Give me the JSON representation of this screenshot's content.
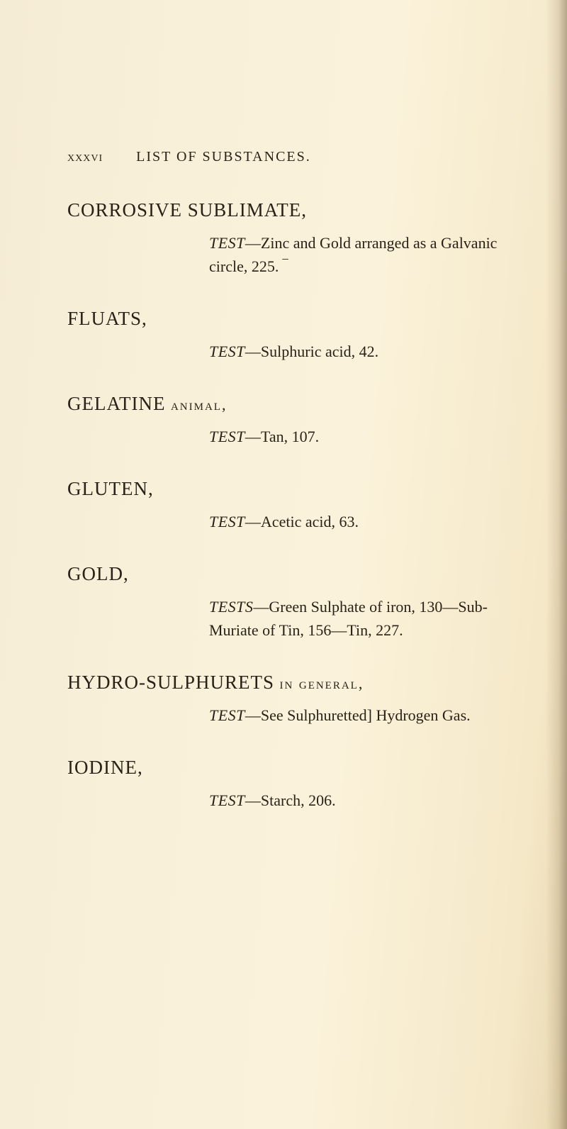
{
  "runningHead": {
    "pageNum": "xxxvi",
    "title": "LIST OF SUBSTANCES."
  },
  "entries": [
    {
      "head": "CORROSIVE SUBLIMATE,",
      "sub": "",
      "test": "TEST—Zinc and Gold arranged as a Galvanic circle, 225. ‾"
    },
    {
      "head": "FLUATS,",
      "sub": "",
      "test": "TEST—Sulphuric acid, 42."
    },
    {
      "head": "GELATINE",
      "sub": "animal,",
      "test": "TEST—Tan, 107."
    },
    {
      "head": "GLUTEN,",
      "sub": "",
      "test": "TEST—Acetic acid, 63."
    },
    {
      "head": "GOLD,",
      "sub": "",
      "test": "TESTS—Green Sulphate of iron, 130—Sub-Muriate of Tin, 156—Tin, 227."
    },
    {
      "head": "HYDRO-SULPHURETS",
      "sub": "in general,",
      "test": "TEST—See Sulphuretted] Hydrogen Gas."
    },
    {
      "head": "IODINE,",
      "sub": "",
      "test": "TEST—Starch, 206."
    }
  ]
}
